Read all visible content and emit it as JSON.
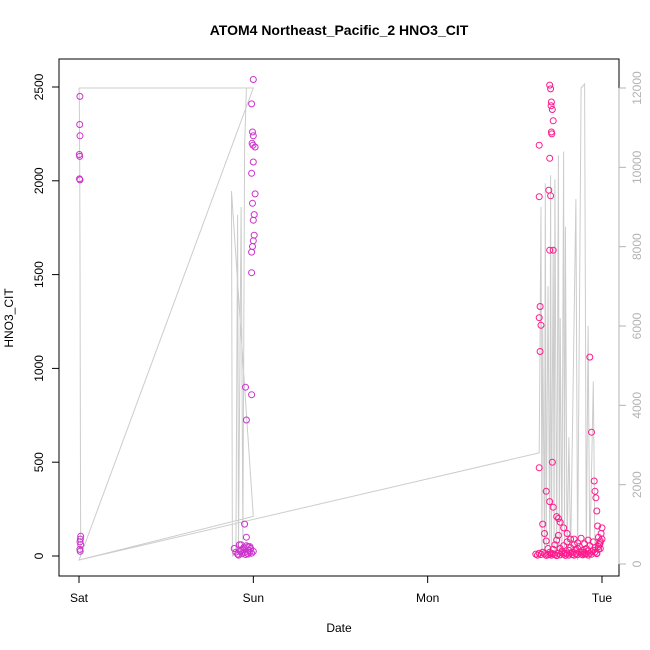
{
  "chart_data": {
    "type": "scatter",
    "title": "ATOM4 Northeast_Pacific_2 HNO3_CIT",
    "xlabel": "Date",
    "ylabel": "HNO3_CIT",
    "x_ticks": [
      "Sat",
      "Sun",
      "Mon",
      "Tue"
    ],
    "x_tick_values": [
      0,
      1,
      2,
      3
    ],
    "ylim": [
      -100,
      2580
    ],
    "y_ticks": [
      0,
      500,
      1000,
      1500,
      2000,
      2500
    ],
    "y2lim": [
      -400,
      12400
    ],
    "y2_ticks": [
      0,
      2000,
      4000,
      6000,
      8000,
      10000,
      12000
    ],
    "grid": false,
    "legend": "none",
    "colors": {
      "points": "#ff1a8c",
      "points_alt": "#cc33cc",
      "line": "#cccccc",
      "axis": "#000000",
      "axis_right": "#b3b3b3"
    },
    "series": [
      {
        "kind": "points",
        "points": [
          [
            0.005,
            2450
          ],
          [
            0.004,
            2300
          ],
          [
            0.006,
            2240
          ],
          [
            0.002,
            2140
          ],
          [
            0.004,
            2130
          ],
          [
            0.003,
            2010
          ],
          [
            0.006,
            2005
          ],
          [
            0.01,
            105
          ],
          [
            0.008,
            90
          ],
          [
            0.006,
            75
          ],
          [
            0.01,
            60
          ],
          [
            0.005,
            35
          ],
          [
            0.007,
            25
          ],
          [
            0.92,
            60
          ],
          [
            0.89,
            40
          ],
          [
            0.9,
            20
          ],
          [
            0.91,
            10
          ],
          [
            0.93,
            30
          ],
          [
            0.95,
            170
          ],
          [
            0.96,
            100
          ],
          [
            0.955,
            900
          ],
          [
            0.96,
            725
          ],
          [
            0.99,
            860
          ],
          [
            1.0,
            2540
          ],
          [
            0.99,
            2410
          ],
          [
            0.995,
            2260
          ],
          [
            1.0,
            2240
          ],
          [
            0.993,
            2200
          ],
          [
            0.998,
            2190
          ],
          [
            1.01,
            2180
          ],
          [
            1.0,
            2100
          ],
          [
            0.99,
            2040
          ],
          [
            1.01,
            1930
          ],
          [
            0.995,
            1880
          ],
          [
            1.005,
            1820
          ],
          [
            1.0,
            1790
          ],
          [
            1.005,
            1710
          ],
          [
            1.0,
            1680
          ],
          [
            0.995,
            1650
          ],
          [
            0.99,
            1620
          ],
          [
            0.99,
            1510
          ],
          [
            0.97,
            50
          ],
          [
            0.975,
            30
          ],
          [
            0.98,
            20
          ],
          [
            0.985,
            40
          ],
          [
            0.965,
            15
          ],
          [
            0.955,
            8
          ],
          [
            0.945,
            45
          ],
          [
            0.935,
            12
          ],
          [
            0.925,
            25
          ],
          [
            0.915,
            5
          ],
          [
            0.93,
            60
          ],
          [
            0.94,
            35
          ],
          [
            0.95,
            20
          ],
          [
            0.96,
            55
          ],
          [
            0.97,
            10
          ],
          [
            0.98,
            50
          ],
          [
            0.99,
            15
          ],
          [
            1.0,
            25
          ],
          [
            2.64,
            2190
          ],
          [
            2.7,
            2510
          ],
          [
            2.705,
            2490
          ],
          [
            2.71,
            2420
          ],
          [
            2.708,
            2400
          ],
          [
            2.715,
            2380
          ],
          [
            2.72,
            2320
          ],
          [
            2.71,
            2260
          ],
          [
            2.712,
            2250
          ],
          [
            2.7,
            2120
          ],
          [
            2.695,
            1950
          ],
          [
            2.705,
            1920
          ],
          [
            2.64,
            1915
          ],
          [
            2.645,
            1330
          ],
          [
            2.64,
            1270
          ],
          [
            2.65,
            1230
          ],
          [
            2.645,
            1090
          ],
          [
            2.7,
            1630
          ],
          [
            2.72,
            1630
          ],
          [
            2.715,
            500
          ],
          [
            2.64,
            470
          ],
          [
            2.68,
            345
          ],
          [
            2.7,
            290
          ],
          [
            2.72,
            260
          ],
          [
            2.74,
            210
          ],
          [
            2.75,
            200
          ],
          [
            2.76,
            180
          ],
          [
            2.78,
            150
          ],
          [
            2.8,
            120
          ],
          [
            2.82,
            90
          ],
          [
            2.84,
            60
          ],
          [
            2.86,
            40
          ],
          [
            2.88,
            20
          ],
          [
            2.9,
            10
          ],
          [
            2.92,
            5
          ],
          [
            2.93,
            1060
          ],
          [
            2.94,
            660
          ],
          [
            2.955,
            400
          ],
          [
            2.96,
            345
          ],
          [
            2.965,
            310
          ],
          [
            2.97,
            240
          ],
          [
            2.975,
            160
          ],
          [
            2.98,
            100
          ],
          [
            2.985,
            60
          ],
          [
            2.99,
            40
          ],
          [
            2.66,
            170
          ],
          [
            2.67,
            120
          ],
          [
            2.68,
            80
          ],
          [
            2.69,
            40
          ],
          [
            2.7,
            20
          ],
          [
            2.71,
            15
          ],
          [
            2.72,
            35
          ],
          [
            2.73,
            60
          ],
          [
            2.74,
            85
          ],
          [
            2.75,
            110
          ],
          [
            2.76,
            40
          ],
          [
            2.77,
            25
          ],
          [
            2.78,
            55
          ],
          [
            2.79,
            15
          ],
          [
            2.8,
            75
          ],
          [
            2.81,
            30
          ],
          [
            2.82,
            45
          ],
          [
            2.83,
            20
          ],
          [
            2.84,
            90
          ],
          [
            2.85,
            35
          ],
          [
            2.86,
            70
          ],
          [
            2.87,
            50
          ],
          [
            2.88,
            95
          ],
          [
            2.89,
            30
          ],
          [
            2.9,
            65
          ],
          [
            2.91,
            40
          ],
          [
            2.92,
            85
          ],
          [
            2.93,
            55
          ],
          [
            2.94,
            25
          ],
          [
            2.95,
            75
          ],
          [
            2.96,
            45
          ],
          [
            2.97,
            15
          ],
          [
            2.98,
            35
          ],
          [
            2.99,
            80
          ],
          [
            3.0,
            150
          ],
          [
            2.62,
            10
          ],
          [
            2.63,
            5
          ],
          [
            2.64,
            15
          ],
          [
            2.65,
            8
          ],
          [
            2.66,
            20
          ],
          [
            2.67,
            12
          ],
          [
            2.68,
            3
          ],
          [
            2.69,
            6
          ],
          [
            2.7,
            9
          ],
          [
            2.71,
            4
          ],
          [
            2.72,
            11
          ],
          [
            2.73,
            7
          ],
          [
            2.74,
            2
          ],
          [
            2.75,
            14
          ],
          [
            2.76,
            6
          ],
          [
            2.77,
            18
          ],
          [
            2.78,
            9
          ],
          [
            2.79,
            3
          ],
          [
            2.8,
            12
          ],
          [
            2.81,
            5
          ],
          [
            2.82,
            16
          ],
          [
            2.83,
            8
          ],
          [
            2.84,
            4
          ],
          [
            2.85,
            13
          ],
          [
            2.86,
            7
          ],
          [
            2.87,
            22
          ],
          [
            2.88,
            10
          ],
          [
            2.89,
            6
          ],
          [
            2.9,
            19
          ],
          [
            2.91,
            11
          ],
          [
            2.92,
            27
          ],
          [
            2.93,
            14
          ],
          [
            2.94,
            9
          ],
          [
            2.95,
            30
          ],
          [
            2.96,
            20
          ],
          [
            2.97,
            12
          ],
          [
            2.98,
            50
          ],
          [
            2.99,
            70
          ],
          [
            3.0,
            90
          ],
          [
            2.995,
            120
          ]
        ]
      },
      {
        "kind": "line",
        "axis": "right",
        "points": [
          [
            0.0,
            12000
          ],
          [
            0.002,
            11800
          ],
          [
            0.004,
            10000
          ],
          [
            0.006,
            8000
          ],
          [
            0.008,
            3000
          ],
          [
            0.01,
            200
          ],
          [
            0.0,
            100
          ],
          [
            1.0,
            1200
          ],
          [
            0.875,
            9400
          ],
          [
            0.88,
            200
          ],
          [
            0.9,
            300
          ],
          [
            0.91,
            8800
          ],
          [
            0.915,
            400
          ],
          [
            0.93,
            9000
          ],
          [
            0.94,
            600
          ],
          [
            0.95,
            10500
          ],
          [
            0.96,
            12000
          ],
          [
            0.0,
            12000
          ],
          [
            0.0,
            12000
          ],
          [
            1.0,
            12000
          ],
          [
            0.0,
            100
          ],
          [
            2.64,
            2800
          ],
          [
            2.65,
            9000
          ],
          [
            2.655,
            200
          ],
          [
            2.66,
            6000
          ],
          [
            2.67,
            300
          ],
          [
            2.675,
            9600
          ],
          [
            2.68,
            500
          ],
          [
            2.69,
            7000
          ],
          [
            2.7,
            300
          ],
          [
            2.705,
            9800
          ],
          [
            2.71,
            400
          ],
          [
            2.72,
            8000
          ],
          [
            2.725,
            300
          ],
          [
            2.73,
            9700
          ],
          [
            2.74,
            200
          ],
          [
            2.75,
            10300
          ],
          [
            2.755,
            300
          ],
          [
            2.76,
            6200
          ],
          [
            2.77,
            200
          ],
          [
            2.78,
            10400
          ],
          [
            2.785,
            300
          ],
          [
            2.79,
            8500
          ],
          [
            2.8,
            200
          ],
          [
            2.81,
            3200
          ],
          [
            2.82,
            200
          ],
          [
            2.85,
            9200
          ],
          [
            2.86,
            100
          ],
          [
            2.88,
            12000
          ],
          [
            2.9,
            12100
          ],
          [
            2.91,
            300
          ],
          [
            2.92,
            6000
          ],
          [
            2.93,
            100
          ],
          [
            2.95,
            4600
          ],
          [
            2.96,
            200
          ]
        ]
      }
    ]
  }
}
